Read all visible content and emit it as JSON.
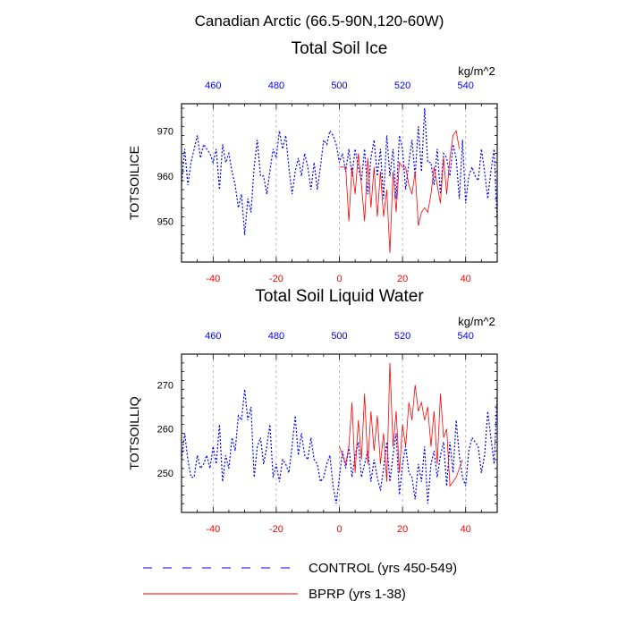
{
  "figure": {
    "region_title": "Canadian Arctic (66.5-90N,120-60W)"
  },
  "legend": [
    {
      "label": "CONTROL (yrs 450-549)",
      "color": "#0000ff",
      "style": "dashed"
    },
    {
      "label": "BPRP (yrs 1-38)",
      "color": "#ff0000",
      "style": "solid"
    }
  ],
  "chart_data": [
    {
      "type": "line",
      "title": "Total Soil Ice",
      "ylabel": "TOTSOILICE",
      "units": "kg/m^2",
      "xlim": [
        -50,
        50
      ],
      "ylim": [
        941,
        976
      ],
      "yticks": [
        950,
        960,
        970
      ],
      "xticks_bottom": [
        -40,
        -20,
        0,
        20,
        40
      ],
      "xticks_top_labels": [
        "460",
        "480",
        "500",
        "520",
        "540"
      ],
      "xticks_top_positions": [
        -40,
        -20,
        0,
        20,
        40
      ],
      "grid_x_dashed": [
        -40,
        -20,
        0,
        20,
        40
      ],
      "series": [
        {
          "name": "CONTROL (yrs 450-549)",
          "color": "#0000ff",
          "dashed": true,
          "x": [
            -50,
            -49,
            -48,
            -47,
            -46,
            -45,
            -44,
            -43,
            -42,
            -41,
            -40,
            -39,
            -38,
            -37,
            -36,
            -35,
            -34,
            -33,
            -32,
            -31,
            -30,
            -29,
            -28,
            -27,
            -26,
            -25,
            -24,
            -23,
            -22,
            -21,
            -20,
            -19,
            -18,
            -17,
            -16,
            -15,
            -14,
            -13,
            -12,
            -11,
            -10,
            -9,
            -8,
            -7,
            -6,
            -5,
            -4,
            -3,
            -2,
            -1,
            0,
            1,
            2,
            3,
            4,
            5,
            6,
            7,
            8,
            9,
            10,
            11,
            12,
            13,
            14,
            15,
            16,
            17,
            18,
            19,
            20,
            21,
            22,
            23,
            24,
            25,
            26,
            27,
            28,
            29,
            30,
            31,
            32,
            33,
            34,
            35,
            36,
            37,
            38,
            39,
            40,
            41,
            42,
            43,
            44,
            45,
            46,
            47,
            48,
            49,
            50
          ],
          "values": [
            958,
            966,
            958,
            963,
            966,
            969,
            964,
            967,
            966,
            965,
            963,
            966,
            957,
            967,
            963,
            965,
            961,
            958,
            953,
            956,
            947,
            955,
            952,
            962,
            968,
            960,
            960,
            956,
            961,
            966,
            964,
            970,
            966,
            969,
            962,
            956,
            961,
            964,
            960,
            965,
            962,
            957,
            963,
            957,
            962,
            968,
            967,
            970,
            969,
            967,
            963,
            965,
            961,
            966,
            960,
            966,
            962,
            959,
            966,
            956,
            964,
            968,
            960,
            966,
            955,
            969,
            960,
            966,
            955,
            969,
            966,
            957,
            963,
            968,
            960,
            971,
            961,
            975,
            963,
            963,
            958,
            966,
            956,
            965,
            964,
            960,
            967,
            964,
            955,
            968,
            954,
            960,
            962,
            960,
            959,
            966,
            961,
            955,
            961,
            966,
            950
          ]
        },
        {
          "name": "BPRP (yrs 1-38)",
          "color": "#ff0000",
          "dashed": false,
          "x": [
            0,
            1,
            2,
            3,
            4,
            5,
            6,
            7,
            8,
            9,
            10,
            11,
            12,
            13,
            14,
            15,
            16,
            17,
            18,
            19,
            20,
            21,
            22,
            23,
            24,
            25,
            26,
            27,
            28,
            29,
            30,
            31,
            32,
            33,
            34,
            35,
            36,
            37,
            38
          ],
          "values": [
            962,
            962,
            962,
            950,
            962,
            956,
            965,
            958,
            950,
            964,
            953,
            962,
            951,
            961,
            951,
            957,
            943,
            961,
            952,
            963,
            962,
            962,
            958,
            956,
            961,
            949,
            952,
            953,
            952,
            956,
            962,
            958,
            954,
            964,
            956,
            964,
            969,
            970,
            966
          ]
        }
      ]
    },
    {
      "type": "line",
      "title": "Total Soil Liquid Water",
      "ylabel": "TOTSOILLIQ",
      "units": "kg/m^2",
      "xlim": [
        -50,
        50
      ],
      "ylim": [
        241,
        277
      ],
      "yticks": [
        250,
        260,
        270
      ],
      "xticks_bottom": [
        -40,
        -20,
        0,
        20,
        40
      ],
      "xticks_top_labels": [
        "460",
        "480",
        "500",
        "520",
        "540"
      ],
      "xticks_top_positions": [
        -40,
        -20,
        0,
        20,
        40
      ],
      "grid_x_dashed": [
        -40,
        -20,
        0,
        20,
        40
      ],
      "series": [
        {
          "name": "CONTROL (yrs 450-549)",
          "color": "#0000ff",
          "dashed": true,
          "x": [
            -50,
            -49,
            -48,
            -47,
            -46,
            -45,
            -44,
            -43,
            -42,
            -41,
            -40,
            -39,
            -38,
            -37,
            -36,
            -35,
            -34,
            -33,
            -32,
            -31,
            -30,
            -29,
            -28,
            -27,
            -26,
            -25,
            -24,
            -23,
            -22,
            -21,
            -20,
            -19,
            -18,
            -17,
            -16,
            -15,
            -14,
            -13,
            -12,
            -11,
            -10,
            -9,
            -8,
            -7,
            -6,
            -5,
            -4,
            -3,
            -2,
            -1,
            0,
            1,
            2,
            3,
            4,
            5,
            6,
            7,
            8,
            9,
            10,
            11,
            12,
            13,
            14,
            15,
            16,
            17,
            18,
            19,
            20,
            21,
            22,
            23,
            24,
            25,
            26,
            27,
            28,
            29,
            30,
            31,
            32,
            33,
            34,
            35,
            36,
            37,
            38,
            39,
            40,
            41,
            42,
            43,
            44,
            45,
            46,
            47,
            48,
            49,
            50
          ],
          "values": [
            253,
            259,
            253,
            249,
            249,
            254,
            251,
            252,
            254,
            251,
            256,
            252,
            261,
            248,
            254,
            251,
            258,
            255,
            263,
            262,
            269,
            262,
            265,
            249,
            256,
            258,
            252,
            256,
            261,
            249,
            252,
            248,
            253,
            252,
            250,
            256,
            263,
            254,
            259,
            254,
            253,
            258,
            253,
            252,
            248,
            249,
            252,
            254,
            247,
            243,
            249,
            255,
            251,
            256,
            249,
            254,
            257,
            249,
            252,
            255,
            248,
            253,
            249,
            246,
            251,
            257,
            248,
            254,
            259,
            245,
            252,
            256,
            250,
            249,
            244,
            252,
            248,
            256,
            243,
            252,
            255,
            249,
            254,
            257,
            247,
            257,
            250,
            262,
            254,
            249,
            247,
            255,
            258,
            257,
            256,
            250,
            254,
            264,
            258,
            252,
            268
          ]
        },
        {
          "name": "BPRP (yrs 1-38)",
          "color": "#ff0000",
          "dashed": false,
          "x": [
            0,
            1,
            2,
            3,
            4,
            5,
            6,
            7,
            8,
            9,
            10,
            11,
            12,
            13,
            14,
            15,
            16,
            17,
            18,
            19,
            20,
            21,
            22,
            23,
            24,
            25,
            26,
            27,
            28,
            29,
            30,
            31,
            32,
            33,
            34,
            35,
            36,
            37,
            38,
            39
          ],
          "values": [
            256,
            254,
            252,
            256,
            266,
            250,
            262,
            253,
            268,
            252,
            264,
            255,
            263,
            252,
            259,
            248,
            275,
            256,
            264,
            250,
            261,
            256,
            266,
            262,
            270,
            264,
            266,
            262,
            265,
            256,
            264,
            252,
            268,
            258,
            260,
            247,
            248,
            249,
            251,
            253
          ]
        }
      ]
    }
  ]
}
